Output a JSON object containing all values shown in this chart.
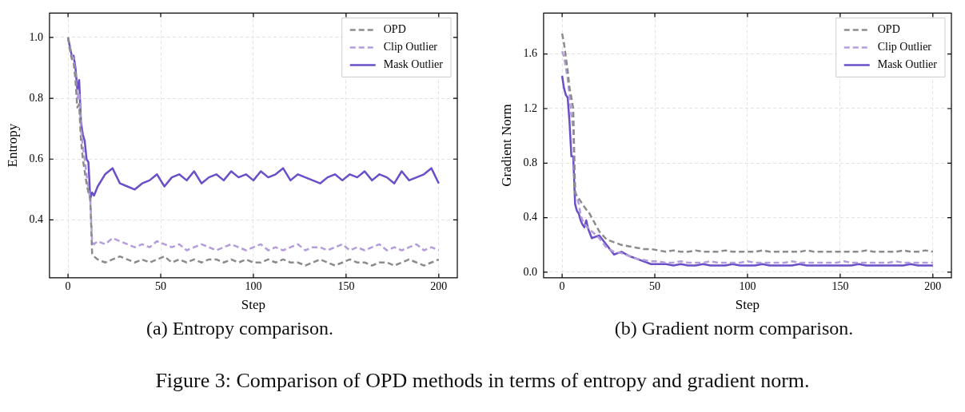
{
  "chart_data": [
    {
      "type": "line",
      "xlabel": "Step",
      "ylabel": "Entropy",
      "xlim": [
        -10,
        210
      ],
      "xticks": [
        0,
        50,
        100,
        150,
        200
      ],
      "ylim": [
        0.21,
        1.08
      ],
      "yticks": [
        0.4,
        0.6,
        0.8,
        {
          "value": 1.0,
          "label": "1.0"
        }
      ],
      "grid": true,
      "legend": "top right",
      "marker": "none",
      "x": [
        0,
        1,
        2,
        3,
        4,
        5,
        6,
        7,
        8,
        9,
        10,
        11,
        12,
        13,
        14,
        16,
        20,
        24,
        28,
        32,
        36,
        40,
        44,
        48,
        52,
        56,
        60,
        64,
        68,
        72,
        76,
        80,
        84,
        88,
        92,
        96,
        100,
        104,
        108,
        112,
        116,
        120,
        124,
        128,
        132,
        136,
        140,
        144,
        148,
        152,
        156,
        160,
        164,
        168,
        172,
        176,
        180,
        184,
        188,
        192,
        196,
        200
      ],
      "series": [
        {
          "name": "OPD",
          "color": "#8c8c8c",
          "line_style": "dashed",
          "values": [
            1.0,
            0.96,
            0.93,
            0.92,
            0.86,
            0.77,
            0.78,
            0.66,
            0.6,
            0.56,
            0.52,
            0.49,
            0.47,
            0.29,
            0.28,
            0.27,
            0.26,
            0.27,
            0.28,
            0.27,
            0.26,
            0.27,
            0.26,
            0.27,
            0.28,
            0.26,
            0.27,
            0.26,
            0.27,
            0.26,
            0.27,
            0.27,
            0.26,
            0.27,
            0.26,
            0.27,
            0.26,
            0.26,
            0.27,
            0.26,
            0.27,
            0.26,
            0.26,
            0.25,
            0.26,
            0.27,
            0.26,
            0.25,
            0.26,
            0.27,
            0.26,
            0.26,
            0.25,
            0.26,
            0.26,
            0.25,
            0.26,
            0.27,
            0.26,
            0.25,
            0.26,
            0.27
          ]
        },
        {
          "name": "Clip Outlier",
          "color": "#b39ddb",
          "line_style": "dashed",
          "values": [
            1.0,
            0.97,
            0.94,
            0.93,
            0.88,
            0.8,
            0.82,
            0.7,
            0.64,
            0.6,
            0.55,
            0.5,
            0.47,
            0.33,
            0.32,
            0.33,
            0.32,
            0.34,
            0.33,
            0.32,
            0.31,
            0.32,
            0.31,
            0.33,
            0.32,
            0.31,
            0.32,
            0.3,
            0.31,
            0.32,
            0.31,
            0.3,
            0.31,
            0.32,
            0.31,
            0.3,
            0.31,
            0.32,
            0.3,
            0.31,
            0.3,
            0.31,
            0.32,
            0.3,
            0.31,
            0.31,
            0.3,
            0.31,
            0.32,
            0.3,
            0.31,
            0.3,
            0.31,
            0.32,
            0.3,
            0.31,
            0.3,
            0.31,
            0.32,
            0.3,
            0.31,
            0.3
          ]
        },
        {
          "name": "Mask Outlier",
          "color": "#6a4fc8",
          "line_style": "solid",
          "values": [
            1.0,
            0.97,
            0.94,
            0.94,
            0.9,
            0.83,
            0.86,
            0.72,
            0.68,
            0.66,
            0.6,
            0.59,
            0.47,
            0.49,
            0.48,
            0.51,
            0.55,
            0.57,
            0.52,
            0.51,
            0.5,
            0.52,
            0.53,
            0.55,
            0.51,
            0.54,
            0.55,
            0.53,
            0.56,
            0.52,
            0.54,
            0.55,
            0.53,
            0.56,
            0.54,
            0.55,
            0.53,
            0.56,
            0.54,
            0.55,
            0.57,
            0.53,
            0.55,
            0.54,
            0.53,
            0.52,
            0.54,
            0.55,
            0.53,
            0.55,
            0.54,
            0.56,
            0.53,
            0.55,
            0.54,
            0.52,
            0.56,
            0.53,
            0.54,
            0.55,
            0.57,
            0.52
          ]
        }
      ],
      "annotations": [
        "(a) Entropy comparison."
      ]
    },
    {
      "type": "line",
      "xlabel": "Step",
      "ylabel": "Gradient Norm",
      "xlim": [
        -10,
        210
      ],
      "xticks": [
        0,
        50,
        100,
        150,
        200
      ],
      "ylim": [
        -0.04,
        1.9
      ],
      "yticks": [
        {
          "value": 0,
          "label": "0.0"
        },
        0.4,
        0.8,
        1.2,
        1.6
      ],
      "grid": true,
      "legend": "top right",
      "marker": "none",
      "x": [
        0,
        1,
        2,
        3,
        4,
        5,
        6,
        7,
        8,
        9,
        10,
        11,
        12,
        13,
        14,
        16,
        20,
        24,
        28,
        32,
        36,
        40,
        44,
        48,
        52,
        56,
        60,
        64,
        68,
        72,
        76,
        80,
        84,
        88,
        92,
        96,
        100,
        104,
        108,
        112,
        116,
        120,
        124,
        128,
        132,
        136,
        140,
        144,
        148,
        152,
        156,
        160,
        164,
        168,
        172,
        176,
        180,
        184,
        188,
        192,
        196,
        200
      ],
      "series": [
        {
          "name": "OPD",
          "color": "#8c8c8c",
          "line_style": "dashed",
          "values": [
            1.75,
            1.68,
            1.58,
            1.48,
            1.35,
            1.28,
            1.2,
            0.58,
            0.56,
            0.54,
            0.52,
            0.5,
            0.48,
            0.46,
            0.45,
            0.4,
            0.3,
            0.24,
            0.22,
            0.2,
            0.19,
            0.18,
            0.17,
            0.17,
            0.16,
            0.15,
            0.16,
            0.15,
            0.15,
            0.16,
            0.15,
            0.15,
            0.15,
            0.16,
            0.15,
            0.15,
            0.15,
            0.15,
            0.16,
            0.15,
            0.15,
            0.15,
            0.15,
            0.15,
            0.16,
            0.15,
            0.15,
            0.15,
            0.15,
            0.15,
            0.15,
            0.15,
            0.16,
            0.15,
            0.15,
            0.15,
            0.15,
            0.16,
            0.15,
            0.15,
            0.16,
            0.15
          ]
        },
        {
          "name": "Clip Outlier",
          "color": "#b39ddb",
          "line_style": "dashed",
          "values": [
            1.62,
            1.58,
            1.5,
            1.42,
            1.3,
            1.15,
            1.05,
            0.6,
            0.55,
            0.5,
            0.42,
            0.38,
            0.36,
            0.34,
            0.32,
            0.3,
            0.25,
            0.18,
            0.15,
            0.14,
            0.12,
            0.1,
            0.09,
            0.08,
            0.08,
            0.07,
            0.07,
            0.08,
            0.07,
            0.07,
            0.07,
            0.08,
            0.07,
            0.07,
            0.07,
            0.07,
            0.08,
            0.07,
            0.07,
            0.07,
            0.07,
            0.07,
            0.08,
            0.07,
            0.07,
            0.07,
            0.07,
            0.07,
            0.07,
            0.08,
            0.07,
            0.07,
            0.07,
            0.07,
            0.07,
            0.07,
            0.08,
            0.07,
            0.07,
            0.07,
            0.07,
            0.07
          ]
        },
        {
          "name": "Mask Outlier",
          "color": "#6a4fc8",
          "line_style": "solid",
          "values": [
            1.44,
            1.35,
            1.3,
            1.28,
            1.1,
            0.85,
            0.85,
            0.5,
            0.45,
            0.43,
            0.38,
            0.35,
            0.33,
            0.38,
            0.32,
            0.25,
            0.27,
            0.2,
            0.13,
            0.15,
            0.12,
            0.1,
            0.08,
            0.06,
            0.06,
            0.06,
            0.05,
            0.06,
            0.05,
            0.05,
            0.06,
            0.05,
            0.05,
            0.05,
            0.06,
            0.05,
            0.05,
            0.05,
            0.06,
            0.05,
            0.05,
            0.05,
            0.05,
            0.06,
            0.05,
            0.05,
            0.05,
            0.05,
            0.05,
            0.05,
            0.05,
            0.06,
            0.05,
            0.05,
            0.05,
            0.05,
            0.05,
            0.05,
            0.06,
            0.05,
            0.05,
            0.05
          ]
        }
      ],
      "annotations": [
        "(b) Gradient norm comparison.",
        "Figure 3: Comparison of OPD methods in terms of entropy and gradient norm."
      ]
    }
  ]
}
